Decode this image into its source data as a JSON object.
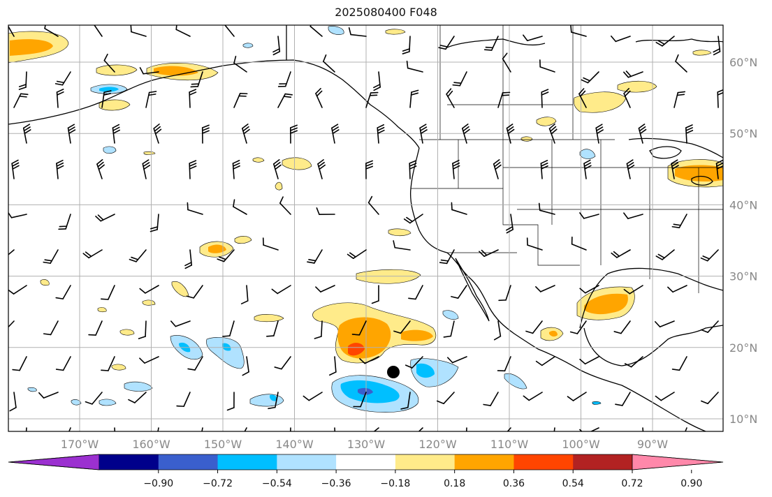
{
  "title": "2025080400 F048",
  "map": {
    "lon_labels": [
      "170°W",
      "160°W",
      "150°W",
      "140°W",
      "130°W",
      "120°W",
      "110°W",
      "100°W",
      "90°W"
    ],
    "lat_labels": [
      "60°N",
      "50°N",
      "40°N",
      "30°N",
      "20°N",
      "10°N"
    ],
    "gridlines": true
  },
  "colorbar": {
    "ticks": [
      "−0.90",
      "−0.72",
      "−0.54",
      "−0.36",
      "−0.18",
      "0.18",
      "0.36",
      "0.54",
      "0.72",
      "0.90"
    ],
    "colors": [
      "#9b30d0",
      "#00008b",
      "#3a5fcd",
      "#00bfff",
      "#b0e2ff",
      "#ffffff",
      "#ffeb8a",
      "#ffa500",
      "#ff4500",
      "#b22222",
      "#ff88aa"
    ]
  },
  "colors": {
    "land_outline": "#000000",
    "gridline": "#b0b0b0",
    "barb": "#000000"
  },
  "marker": {
    "name": "filled-circle",
    "lon": -126,
    "lat": 16
  }
}
